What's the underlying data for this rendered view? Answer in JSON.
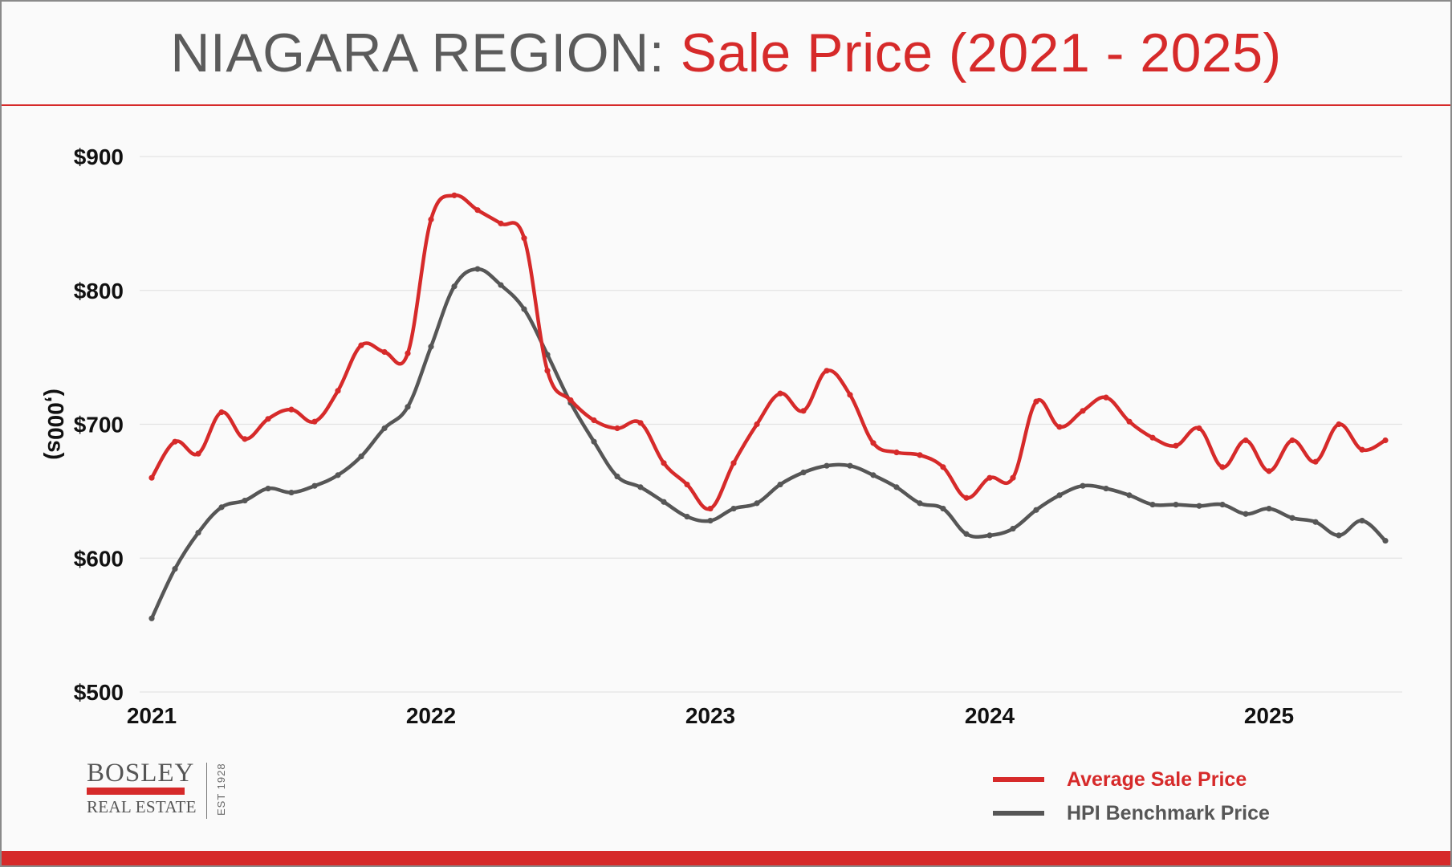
{
  "title": {
    "main": "NIAGARA REGION:",
    "accent": "Sale Price (2021 - 2025)"
  },
  "logo": {
    "name": "BOSLEY",
    "sub": "REAL ESTATE",
    "est": "EST 1928"
  },
  "colors": {
    "avg": "#d62a2a",
    "hpi": "#565656",
    "grid": "#e3e3e3"
  },
  "chart_data": {
    "type": "line",
    "ylabel": "(,000s)",
    "ylim": [
      500,
      900
    ],
    "yticks": [
      500,
      600,
      700,
      800,
      900
    ],
    "ytick_labels": [
      "$500",
      "$600",
      "$700",
      "$800",
      "$900"
    ],
    "xlim": [
      2021,
      2025.42
    ],
    "xticks": [
      2021,
      2022,
      2023,
      2024,
      2025
    ],
    "xtick_labels": [
      "2021",
      "2022",
      "2023",
      "2024",
      "2025"
    ],
    "grid": true,
    "legend": "bottom-right",
    "series": [
      {
        "name": "Average Sale Price",
        "color": "#d62a2a",
        "values": [
          660,
          687,
          678,
          709,
          689,
          704,
          711,
          702,
          725,
          759,
          754,
          753,
          853,
          871,
          860,
          850,
          839,
          740,
          718,
          703,
          697,
          701,
          671,
          655,
          637,
          671,
          700,
          723,
          710,
          740,
          722,
          686,
          679,
          677,
          668,
          645,
          660,
          660,
          717,
          698,
          710,
          720,
          702,
          690,
          684,
          697,
          668,
          688,
          665,
          688,
          672,
          700,
          681,
          688
        ]
      },
      {
        "name": "HPI Benchmark Price",
        "color": "#565656",
        "values": [
          555,
          592,
          619,
          638,
          643,
          652,
          649,
          654,
          662,
          676,
          697,
          713,
          758,
          803,
          816,
          804,
          786,
          752,
          716,
          687,
          661,
          653,
          642,
          631,
          628,
          637,
          641,
          655,
          664,
          669,
          669,
          662,
          653,
          641,
          637,
          618,
          617,
          622,
          636,
          647,
          654,
          652,
          647,
          640,
          640,
          639,
          640,
          633,
          637,
          630,
          627,
          617,
          628,
          613
        ]
      }
    ]
  }
}
